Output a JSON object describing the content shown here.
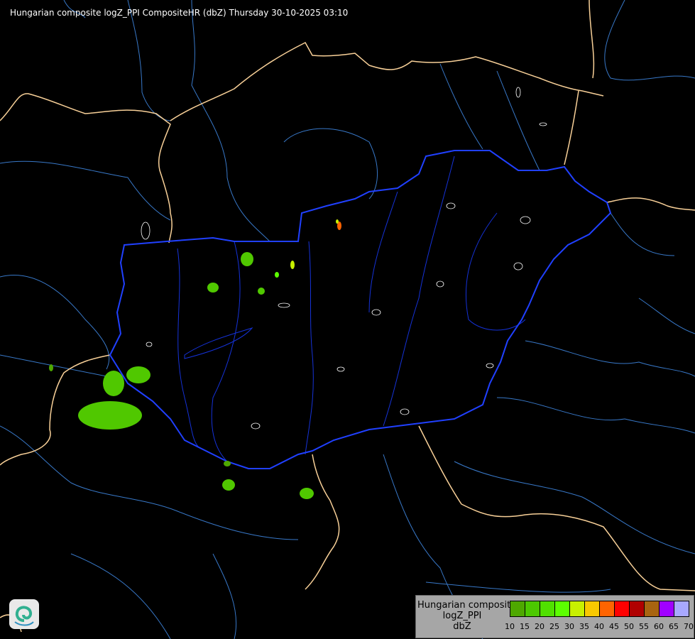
{
  "title": "Hungarian composite logZ_PPI CompositeHR (dbZ) Thursday 30-10-2025 03:10",
  "legend": {
    "name_lines": [
      "Hungarian composite",
      "logZ_PPI",
      "dbZ"
    ],
    "ticks": [
      "10",
      "15",
      "20",
      "25",
      "30",
      "35",
      "40",
      "45",
      "50",
      "55",
      "60",
      "65",
      "70"
    ],
    "colors": [
      "#4ea800",
      "#4cc800",
      "#50e000",
      "#5cff00",
      "#c8f000",
      "#f8c800",
      "#ff6400",
      "#ff0000",
      "#b00000",
      "#a86410",
      "#a000ff",
      "#a8a8ff"
    ]
  },
  "colors": {
    "background": "#000000",
    "hungary_border": "#2040ff",
    "country_border": "#f8d098",
    "rivers": "#3878c8",
    "precip_light": "#50c800"
  },
  "logo": {
    "icon": "met-service-swirl-logo"
  }
}
